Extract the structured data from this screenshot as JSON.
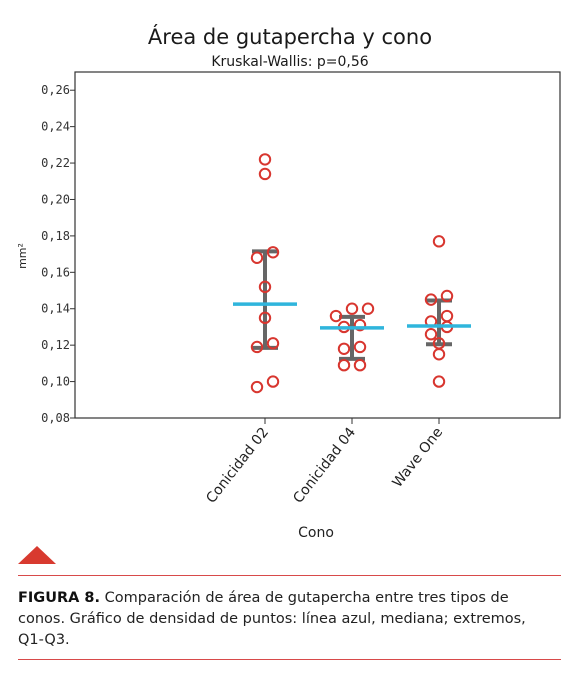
{
  "chart_data": {
    "type": "scatter",
    "title": "Área de gutapercha y cono",
    "subtitle": "Kruskal-Wallis: p=0,56",
    "xlabel": "Cono",
    "ylabel": "mm²",
    "ylim": [
      0.08,
      0.27
    ],
    "yticks": [
      "0,08",
      "0,10",
      "0,12",
      "0,14",
      "0,16",
      "0,18",
      "0,20",
      "0,22",
      "0,24",
      "0,26"
    ],
    "categories": [
      "Conicidad 02",
      "Conicidad 04",
      "Wave One"
    ],
    "colors": {
      "points": "#d8362f",
      "median": "#2fb5dc",
      "range": "#666666"
    },
    "groups": [
      {
        "name": "Conicidad 02",
        "median": 0.1425,
        "q1": 0.1185,
        "q3": 0.1715,
        "points": [
          {
            "dx": 0,
            "y": 0.222
          },
          {
            "dx": 0,
            "y": 0.214
          },
          {
            "dx": -0.5,
            "y": 0.168
          },
          {
            "dx": 0.5,
            "y": 0.171
          },
          {
            "dx": 0,
            "y": 0.152
          },
          {
            "dx": 0,
            "y": 0.135
          },
          {
            "dx": -0.5,
            "y": 0.119
          },
          {
            "dx": 0.5,
            "y": 0.121
          },
          {
            "dx": -0.5,
            "y": 0.097
          },
          {
            "dx": 0.5,
            "y": 0.1
          }
        ]
      },
      {
        "name": "Conicidad 04",
        "median": 0.1295,
        "q1": 0.1125,
        "q3": 0.1355,
        "points": [
          {
            "dx": -1,
            "y": 0.136
          },
          {
            "dx": 0,
            "y": 0.14
          },
          {
            "dx": 1,
            "y": 0.14
          },
          {
            "dx": -0.5,
            "y": 0.13
          },
          {
            "dx": 0.5,
            "y": 0.131
          },
          {
            "dx": -0.5,
            "y": 0.118
          },
          {
            "dx": 0.5,
            "y": 0.119
          },
          {
            "dx": -0.5,
            "y": 0.109
          },
          {
            "dx": 0.5,
            "y": 0.109
          }
        ]
      },
      {
        "name": "Wave One",
        "median": 0.1305,
        "q1": 0.1205,
        "q3": 0.1445,
        "points": [
          {
            "dx": 0,
            "y": 0.177
          },
          {
            "dx": -0.5,
            "y": 0.145
          },
          {
            "dx": 0.5,
            "y": 0.147
          },
          {
            "dx": -0.5,
            "y": 0.133
          },
          {
            "dx": 0.5,
            "y": 0.136
          },
          {
            "dx": -0.5,
            "y": 0.126
          },
          {
            "dx": 0.5,
            "y": 0.13
          },
          {
            "dx": 0,
            "y": 0.121
          },
          {
            "dx": 0,
            "y": 0.115
          },
          {
            "dx": 0,
            "y": 0.1
          }
        ]
      }
    ]
  },
  "caption": {
    "label": "FIGURA 8.",
    "text": " Comparación de área de gutapercha entre tres tipos de conos. Gráfico de densidad de puntos: línea azul, mediana; extremos, Q1-Q3."
  }
}
